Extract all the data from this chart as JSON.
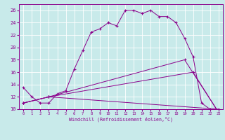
{
  "xlabel": "Windchill (Refroidissement éolien,°C)",
  "ylabel": "",
  "xlim": [
    -0.5,
    23.5
  ],
  "ylim": [
    10,
    27
  ],
  "xticks": [
    0,
    1,
    2,
    3,
    4,
    5,
    6,
    7,
    8,
    9,
    10,
    11,
    12,
    13,
    14,
    15,
    16,
    17,
    18,
    19,
    20,
    21,
    22,
    23
  ],
  "yticks": [
    10,
    12,
    14,
    16,
    18,
    20,
    22,
    24,
    26
  ],
  "bg_color": "#c8eaea",
  "line_color": "#8b008b",
  "grid_color": "#ffffff",
  "line1_x": [
    0,
    1,
    2,
    3,
    4,
    5,
    6,
    7,
    8,
    9,
    10,
    11,
    12,
    13,
    14,
    15,
    16,
    17,
    18,
    19,
    20,
    21,
    22,
    23
  ],
  "line1_y": [
    13.5,
    12.0,
    11.0,
    11.0,
    12.5,
    13.0,
    16.5,
    19.5,
    22.5,
    23.0,
    24.0,
    23.5,
    26.0,
    26.0,
    25.5,
    26.0,
    25.0,
    25.0,
    24.0,
    21.5,
    18.5,
    11.0,
    10.0,
    9.5
  ],
  "line2_x": [
    0,
    3,
    19,
    23
  ],
  "line2_y": [
    11.0,
    12.0,
    18.0,
    9.5
  ],
  "line3_x": [
    0,
    3,
    20,
    23
  ],
  "line3_y": [
    11.0,
    12.0,
    16.0,
    9.5
  ],
  "line4_x": [
    0,
    3,
    23
  ],
  "line4_y": [
    11.0,
    12.0,
    10.0
  ]
}
